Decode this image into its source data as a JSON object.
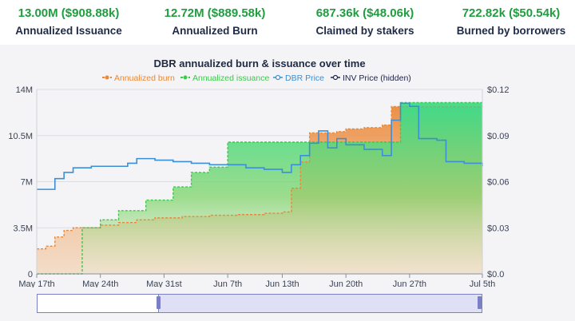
{
  "kpis": [
    {
      "value": "13.00M ($908.88k)",
      "label": "Annualized Issuance"
    },
    {
      "value": "12.72M ($889.58k)",
      "label": "Annualized Burn"
    },
    {
      "value": "687.36k ($48.06k)",
      "label": "Claimed by stakers"
    },
    {
      "value": "722.82k ($50.54k)",
      "label": "Burned by borrowers"
    }
  ],
  "colors": {
    "burn": "#e8883a",
    "issuance": "#3cc94c",
    "dbr_price": "#3a8fd6",
    "inv_price": "#22264a",
    "kpi_value": "#1f9d3f"
  },
  "chart_data": {
    "type": "area",
    "title": "DBR annualized burn & issuance over time",
    "legend": {
      "placement": "top",
      "entries": [
        "Annualized burn",
        "Annualized issuance",
        "DBR Price",
        "INV Price (hidden)"
      ]
    },
    "x_axis": {
      "type": "date",
      "range": [
        "2022-05-17",
        "2022-07-05"
      ],
      "tick_dates": [
        "2022-05-17",
        "2022-05-24",
        "2022-05-31",
        "2022-06-07",
        "2022-06-13",
        "2022-06-20",
        "2022-06-27",
        "2022-07-05"
      ],
      "tick_labels": [
        "May 17th",
        "May 24th",
        "May 31st",
        "Jun 7th",
        "Jun 13th",
        "Jun 20th",
        "Jun 27th",
        "Jul 5th"
      ]
    },
    "y_left": {
      "range": [
        0,
        14000000
      ],
      "ticks": [
        0,
        3500000,
        7000000,
        10500000,
        14000000
      ],
      "tick_labels": [
        "0",
        "3.5M",
        "7M",
        "10.5M",
        "14M"
      ]
    },
    "y_right": {
      "range": [
        0,
        0.12
      ],
      "ticks": [
        0,
        0.03,
        0.06,
        0.09,
        0.12
      ],
      "tick_labels": [
        "$0.0",
        "$0.03",
        "$0.06",
        "$0.09",
        "$0.12"
      ]
    },
    "grid": true,
    "series": [
      {
        "name": "Annualized burn",
        "axis": "left",
        "points": [
          [
            "2022-05-17",
            1900000
          ],
          [
            "2022-05-18",
            2100000
          ],
          [
            "2022-05-19",
            2800000
          ],
          [
            "2022-05-20",
            3300000
          ],
          [
            "2022-05-21",
            3500000
          ],
          [
            "2022-05-23",
            3500000
          ],
          [
            "2022-05-24",
            3700000
          ],
          [
            "2022-05-26",
            3900000
          ],
          [
            "2022-05-28",
            4100000
          ],
          [
            "2022-05-30",
            4250000
          ],
          [
            "2022-06-02",
            4350000
          ],
          [
            "2022-06-05",
            4450000
          ],
          [
            "2022-06-08",
            4500000
          ],
          [
            "2022-06-11",
            4600000
          ],
          [
            "2022-06-13",
            4700000
          ],
          [
            "2022-06-14",
            6500000
          ],
          [
            "2022-06-15",
            8500000
          ],
          [
            "2022-06-16",
            10700000
          ],
          [
            "2022-06-18",
            10700000
          ],
          [
            "2022-06-19",
            10800000
          ],
          [
            "2022-06-20",
            11000000
          ],
          [
            "2022-06-22",
            11100000
          ],
          [
            "2022-06-24",
            11300000
          ],
          [
            "2022-06-25",
            12700000
          ],
          [
            "2022-07-05",
            12720000
          ]
        ]
      },
      {
        "name": "Annualized issuance",
        "axis": "left",
        "points": [
          [
            "2022-05-17",
            0
          ],
          [
            "2022-05-21",
            0
          ],
          [
            "2022-05-22",
            3500000
          ],
          [
            "2022-05-24",
            4100000
          ],
          [
            "2022-05-26",
            4800000
          ],
          [
            "2022-05-29",
            5600000
          ],
          [
            "2022-06-01",
            6600000
          ],
          [
            "2022-06-03",
            7700000
          ],
          [
            "2022-06-05",
            8100000
          ],
          [
            "2022-06-07",
            10000000
          ],
          [
            "2022-06-14",
            10000000
          ],
          [
            "2022-06-24",
            10000000
          ],
          [
            "2022-06-26",
            13000000
          ],
          [
            "2022-07-05",
            13000000
          ]
        ]
      },
      {
        "name": "DBR Price",
        "axis": "right",
        "points": [
          [
            "2022-05-17",
            0.055
          ],
          [
            "2022-05-18",
            0.055
          ],
          [
            "2022-05-19",
            0.062
          ],
          [
            "2022-05-20",
            0.066
          ],
          [
            "2022-05-21",
            0.069
          ],
          [
            "2022-05-23",
            0.07
          ],
          [
            "2022-05-25",
            0.07
          ],
          [
            "2022-05-27",
            0.072
          ],
          [
            "2022-05-28",
            0.075
          ],
          [
            "2022-05-29",
            0.075
          ],
          [
            "2022-05-30",
            0.074
          ],
          [
            "2022-06-01",
            0.073
          ],
          [
            "2022-06-03",
            0.072
          ],
          [
            "2022-06-05",
            0.071
          ],
          [
            "2022-06-07",
            0.071
          ],
          [
            "2022-06-09",
            0.069
          ],
          [
            "2022-06-11",
            0.068
          ],
          [
            "2022-06-13",
            0.066
          ],
          [
            "2022-06-14",
            0.071
          ],
          [
            "2022-06-15",
            0.077
          ],
          [
            "2022-06-16",
            0.085
          ],
          [
            "2022-06-17",
            0.093
          ],
          [
            "2022-06-18",
            0.082
          ],
          [
            "2022-06-19",
            0.088
          ],
          [
            "2022-06-20",
            0.084
          ],
          [
            "2022-06-22",
            0.081
          ],
          [
            "2022-06-24",
            0.077
          ],
          [
            "2022-06-25",
            0.1
          ],
          [
            "2022-06-26",
            0.111
          ],
          [
            "2022-06-27",
            0.109
          ],
          [
            "2022-06-28",
            0.088
          ],
          [
            "2022-06-30",
            0.087
          ],
          [
            "2022-07-01",
            0.073
          ],
          [
            "2022-07-03",
            0.072
          ],
          [
            "2022-07-05",
            0.07
          ]
        ]
      }
    ]
  }
}
